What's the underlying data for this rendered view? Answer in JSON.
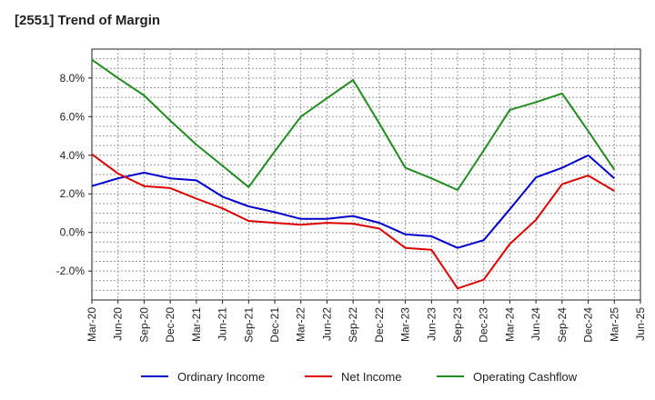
{
  "chart_data": {
    "type": "line",
    "title": "[2551]  Trend of Margin",
    "xlabel": "",
    "ylabel": "",
    "categories": [
      "Mar-20",
      "Jun-20",
      "Sep-20",
      "Dec-20",
      "Mar-21",
      "Jun-21",
      "Sep-21",
      "Dec-21",
      "Mar-22",
      "Jun-22",
      "Sep-22",
      "Dec-22",
      "Mar-23",
      "Jun-23",
      "Sep-23",
      "Dec-23",
      "Mar-24",
      "Jun-24",
      "Sep-24",
      "Dec-24",
      "Mar-25",
      "Jun-25"
    ],
    "ylim": [
      -3.5,
      9.5
    ],
    "yticks": [
      -2.0,
      0.0,
      2.0,
      4.0,
      6.0,
      8.0
    ],
    "ytick_labels": [
      "-2.0%",
      "0.0%",
      "2.0%",
      "4.0%",
      "6.0%",
      "8.0%"
    ],
    "grid": true,
    "legend_position": "bottom",
    "series": [
      {
        "name": "Ordinary Income",
        "color": "#0000cc",
        "values": [
          2.4,
          2.8,
          3.1,
          2.8,
          2.7,
          1.85,
          1.35,
          1.05,
          0.7,
          0.7,
          0.85,
          0.5,
          -0.1,
          -0.2,
          -0.8,
          -0.4,
          1.2,
          2.85,
          3.35,
          4.0,
          2.8,
          null
        ]
      },
      {
        "name": "Net Income",
        "color": "#dd0000",
        "values": [
          4.05,
          3.05,
          2.4,
          2.3,
          1.75,
          1.25,
          0.6,
          0.5,
          0.4,
          0.5,
          0.45,
          0.2,
          -0.8,
          -0.9,
          -2.9,
          -2.45,
          -0.6,
          0.65,
          2.5,
          2.95,
          2.15,
          null
        ]
      },
      {
        "name": "Operating Cashflow",
        "color": "#228b22",
        "values": [
          8.95,
          8.0,
          7.1,
          5.8,
          4.55,
          3.45,
          2.35,
          4.2,
          6.0,
          6.95,
          7.9,
          5.65,
          3.35,
          2.8,
          2.2,
          4.25,
          6.35,
          6.75,
          7.2,
          5.25,
          3.25,
          null
        ]
      }
    ]
  }
}
